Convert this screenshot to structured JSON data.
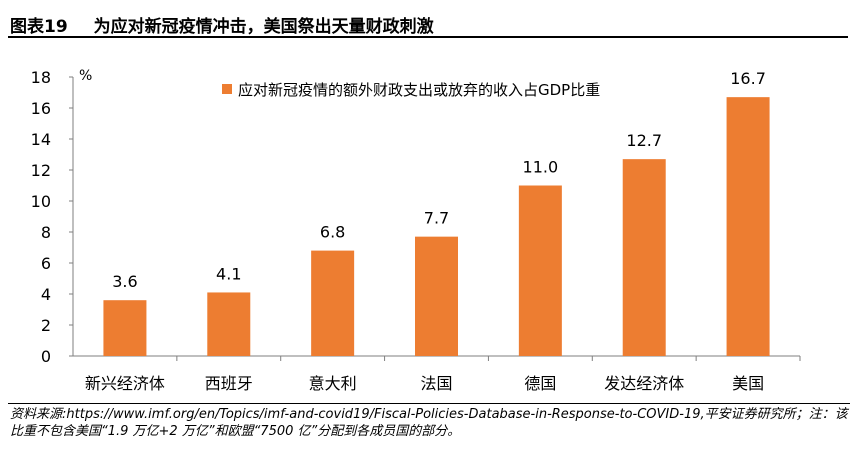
{
  "figure": {
    "number": "图表19",
    "title": "为应对新冠疫情冲击，美国祭出天量财政刺激"
  },
  "chart_data": {
    "type": "bar",
    "title": "",
    "unit": "%",
    "legend": "应对新冠疫情的额外财政支出或放弃的收入占GDP比重",
    "legend_position": "top-center",
    "categories": [
      "新兴经济体",
      "西班牙",
      "意大利",
      "法国",
      "德国",
      "发达经济体",
      "美国"
    ],
    "values": [
      3.6,
      4.1,
      6.8,
      7.7,
      11.0,
      12.7,
      16.7
    ],
    "value_labels": [
      "3.6",
      "4.1",
      "6.8",
      "7.7",
      "11.0",
      "12.7",
      "16.7"
    ],
    "yticks": [
      "0",
      "2",
      "4",
      "6",
      "8",
      "10",
      "12",
      "14",
      "16",
      "18"
    ],
    "ylim": [
      0,
      18
    ],
    "grid": false,
    "bar_color": "#ED7D31"
  },
  "source": "资料来源:https://www.imf.org/en/Topics/imf-and-covid19/Fiscal-Policies-Database-in-Response-to-COVID-19,平安证券研究所；注：该比重不包含美国“1.9 万亿+2 万亿”和欧盟“7500 亿”分配到各成员国的部分。"
}
